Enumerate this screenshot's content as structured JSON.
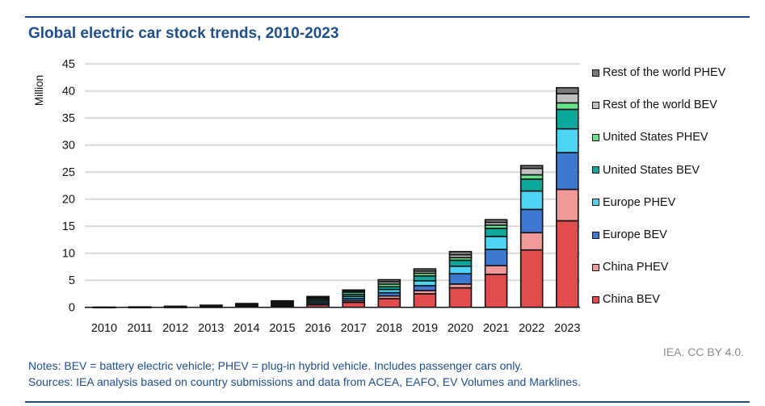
{
  "title": "Global electric car stock trends, 2010-2023",
  "credit": "IEA. CC BY 4.0.",
  "notes": "Notes: BEV = battery electric vehicle; PHEV = plug-in hybrid vehicle. Includes passenger cars only.",
  "sources": "Sources: IEA analysis based on country submissions and data from ACEA, EAFO, EV Volumes and Marklines.",
  "chart_data": {
    "type": "bar",
    "stacked": true,
    "title": "Global electric car stock trends, 2010-2023",
    "xlabel": "",
    "ylabel": "Million",
    "ylim": [
      0,
      45
    ],
    "yticks": [
      0,
      5,
      10,
      15,
      20,
      25,
      30,
      35,
      40,
      45
    ],
    "grid": true,
    "legend_position": "right",
    "categories": [
      "2010",
      "2011",
      "2012",
      "2013",
      "2014",
      "2015",
      "2016",
      "2017",
      "2018",
      "2019",
      "2020",
      "2021",
      "2022",
      "2023"
    ],
    "series": [
      {
        "name": "China BEV",
        "color": "#e34c4c",
        "values": [
          0.01,
          0.02,
          0.03,
          0.05,
          0.08,
          0.2,
          0.45,
          0.9,
          1.6,
          2.5,
          3.6,
          6.1,
          10.6,
          16.0
        ]
      },
      {
        "name": "China PHEV",
        "color": "#f09a9a",
        "values": [
          0,
          0,
          0,
          0.01,
          0.03,
          0.08,
          0.1,
          0.3,
          0.5,
          0.6,
          0.7,
          1.6,
          3.2,
          5.8
        ]
      },
      {
        "name": "Europe BEV",
        "color": "#3d78d2",
        "values": [
          0,
          0.01,
          0.02,
          0.05,
          0.1,
          0.2,
          0.3,
          0.4,
          0.6,
          0.9,
          1.9,
          3.0,
          4.3,
          6.8
        ]
      },
      {
        "name": "Europe PHEV",
        "color": "#4dd4f5",
        "values": [
          0,
          0,
          0.02,
          0.05,
          0.1,
          0.2,
          0.3,
          0.4,
          0.6,
          0.9,
          1.4,
          2.4,
          3.4,
          4.4
        ]
      },
      {
        "name": "United States BEV",
        "color": "#0aa89a",
        "values": [
          0,
          0.01,
          0.03,
          0.07,
          0.12,
          0.2,
          0.3,
          0.4,
          0.5,
          0.9,
          1.1,
          1.5,
          2.2,
          3.6
        ]
      },
      {
        "name": "United States PHEV",
        "color": "#66e38a",
        "values": [
          0,
          0.01,
          0.04,
          0.1,
          0.15,
          0.2,
          0.25,
          0.4,
          0.5,
          0.5,
          0.5,
          0.6,
          0.8,
          1.2
        ]
      },
      {
        "name": "Rest of the world BEV",
        "color": "#c0c0c0",
        "values": [
          0.01,
          0.01,
          0.03,
          0.04,
          0.07,
          0.1,
          0.15,
          0.2,
          0.4,
          0.4,
          0.5,
          0.5,
          1.2,
          1.7
        ]
      },
      {
        "name": "Rest of the world PHEV",
        "color": "#7a7a7a",
        "values": [
          0,
          0.01,
          0.01,
          0.01,
          0.05,
          0.02,
          0.15,
          0.2,
          0.4,
          0.4,
          0.6,
          0.5,
          0.5,
          1.1
        ]
      }
    ]
  }
}
